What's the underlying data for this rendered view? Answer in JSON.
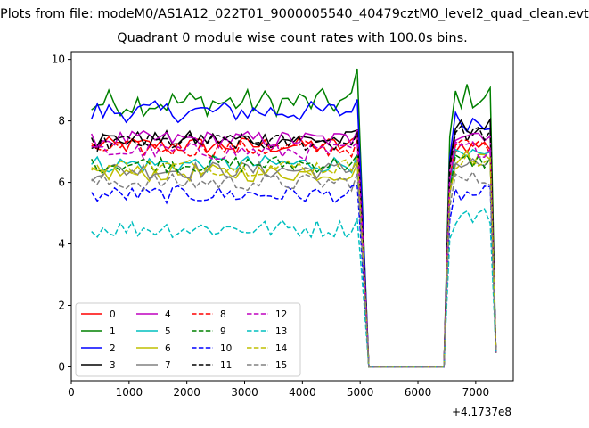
{
  "chart_data": {
    "type": "line",
    "suptitle": "Plots from file: modeM0/AS1A12_022T01_9000005540_40479cztM0_level2_quad_clean.evt",
    "title": "Quadrant 0 module wise count rates with 100.0s bins.",
    "x_offset_label": "+4.1737e8",
    "xlim": [
      0,
      7650
    ],
    "ylim": [
      -0.45,
      10.25
    ],
    "x_ticks": [
      0,
      1000,
      2000,
      3000,
      4000,
      5000,
      6000,
      7000
    ],
    "y_ticks": [
      0,
      2,
      4,
      6,
      8,
      10
    ],
    "grid": false,
    "legend": {
      "placement": "lower-left",
      "columns": 4
    },
    "drop_region": {
      "x": [
        5000,
        5100,
        5150,
        6450,
        6550
      ],
      "y_zero": 0
    },
    "series": [
      {
        "name": "0",
        "color": "#ff0000",
        "dash": "solid",
        "approx_level": 7.2,
        "after_level": 7.2
      },
      {
        "name": "1",
        "color": "#008000",
        "dash": "solid",
        "approx_level": 8.6,
        "after_level": 8.8
      },
      {
        "name": "2",
        "color": "#0000ff",
        "dash": "solid",
        "approx_level": 8.3,
        "after_level": 8.0
      },
      {
        "name": "3",
        "color": "#000000",
        "dash": "solid",
        "approx_level": 7.4,
        "after_level": 7.8
      },
      {
        "name": "4",
        "color": "#bf00bf",
        "dash": "solid",
        "approx_level": 7.4,
        "after_level": 7.6
      },
      {
        "name": "5",
        "color": "#00bfbf",
        "dash": "solid",
        "approx_level": 6.6,
        "after_level": 6.8
      },
      {
        "name": "6",
        "color": "#bfbf00",
        "dash": "solid",
        "approx_level": 6.3,
        "after_level": 6.8
      },
      {
        "name": "7",
        "color": "#808080",
        "dash": "solid",
        "approx_level": 6.4,
        "after_level": 6.6
      },
      {
        "name": "8",
        "color": "#ff0000",
        "dash": "dashed",
        "approx_level": 7.1,
        "after_level": 7.2
      },
      {
        "name": "9",
        "color": "#008000",
        "dash": "dashed",
        "approx_level": 6.6,
        "after_level": 6.7
      },
      {
        "name": "10",
        "color": "#0000ff",
        "dash": "dashed",
        "approx_level": 5.6,
        "after_level": 5.6
      },
      {
        "name": "11",
        "color": "#000000",
        "dash": "dashed",
        "approx_level": 7.3,
        "after_level": 7.6
      },
      {
        "name": "12",
        "color": "#bf00bf",
        "dash": "dashed",
        "approx_level": 7.0,
        "after_level": 7.1
      },
      {
        "name": "13",
        "color": "#00bfbf",
        "dash": "dashed",
        "approx_level": 4.5,
        "after_level": 4.9
      },
      {
        "name": "14",
        "color": "#bfbf00",
        "dash": "dashed",
        "approx_level": 6.5,
        "after_level": 6.7
      },
      {
        "name": "15",
        "color": "#808080",
        "dash": "dashed",
        "approx_level": 6.0,
        "after_level": 6.1
      }
    ]
  }
}
